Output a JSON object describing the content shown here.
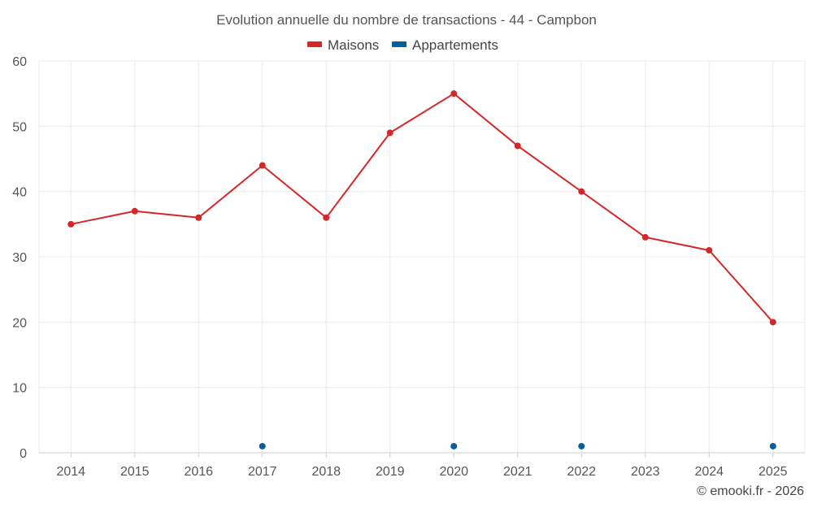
{
  "chart_data": {
    "type": "line",
    "title": "Evolution annuelle du nombre de transactions - 44 - Campbon",
    "categories": [
      "2014",
      "2015",
      "2016",
      "2017",
      "2018",
      "2019",
      "2020",
      "2021",
      "2022",
      "2023",
      "2024",
      "2025"
    ],
    "series": [
      {
        "name": "Maisons",
        "color": "#d62728",
        "values": [
          35,
          37,
          36,
          44,
          36,
          49,
          55,
          47,
          40,
          33,
          31,
          20
        ]
      },
      {
        "name": "Appartements",
        "color": "#075f99",
        "values": [
          null,
          null,
          null,
          1,
          null,
          null,
          1,
          null,
          1,
          null,
          null,
          1
        ]
      }
    ],
    "ylim": [
      0,
      60
    ],
    "yticks": [
      0,
      10,
      20,
      30,
      40,
      50,
      60
    ],
    "legend_position": "top-center",
    "grid": true,
    "credit": "© emooki.fr - 2026"
  }
}
